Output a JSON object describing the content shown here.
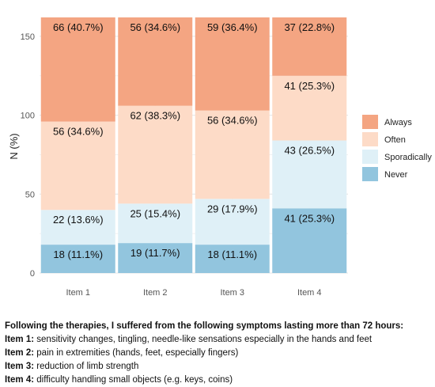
{
  "chart_data": {
    "type": "bar",
    "stacked": true,
    "categories": [
      "Item 1",
      "Item 2",
      "Item 3",
      "Item 4"
    ],
    "ylabel": "N (%)",
    "xlabel": "",
    "ylim": [
      0,
      162
    ],
    "yticks": [
      0,
      50,
      100,
      150
    ],
    "grid": true,
    "legend_position": "right",
    "series": [
      {
        "name": "Never",
        "color": "#92c5de",
        "values": [
          18,
          19,
          18,
          41
        ],
        "labels": [
          "18 (11.1%)",
          "19 (11.7%)",
          "18 (11.1%)",
          "41 (25.3%)"
        ]
      },
      {
        "name": "Sporadically",
        "color": "#dff0f7",
        "values": [
          22,
          25,
          29,
          43
        ],
        "labels": [
          "22 (13.6%)",
          "25 (15.4%)",
          "29 (17.9%)",
          "43 (26.5%)"
        ]
      },
      {
        "name": "Often",
        "color": "#fddbc7",
        "values": [
          56,
          62,
          56,
          41
        ],
        "labels": [
          "56 (34.6%)",
          "62 (38.3%)",
          "56 (34.6%)",
          "41 (25.3%)"
        ]
      },
      {
        "name": "Always",
        "color": "#f4a582",
        "values": [
          66,
          56,
          59,
          37
        ],
        "labels": [
          "66 (40.7%)",
          "56 (34.6%)",
          "59 (36.4%)",
          "37 (22.8%)"
        ]
      }
    ],
    "legend_order": [
      "Always",
      "Often",
      "Sporadically",
      "Never"
    ]
  },
  "caption": {
    "heading": "Following the therapies, I suffered from the following symptoms lasting more than 72 hours:",
    "items": [
      {
        "key": "Item 1:",
        "text": " sensitivity changes, tingling, needle-like sensations especially in the hands and feet"
      },
      {
        "key": "Item 2:",
        "text": " pain in extremities (hands, feet, especially fingers)"
      },
      {
        "key": "Item 3:",
        "text": " reduction of limb strength"
      },
      {
        "key": "Item 4:",
        "text": " difficulty handling small objects (e.g. keys, coins)"
      }
    ]
  }
}
